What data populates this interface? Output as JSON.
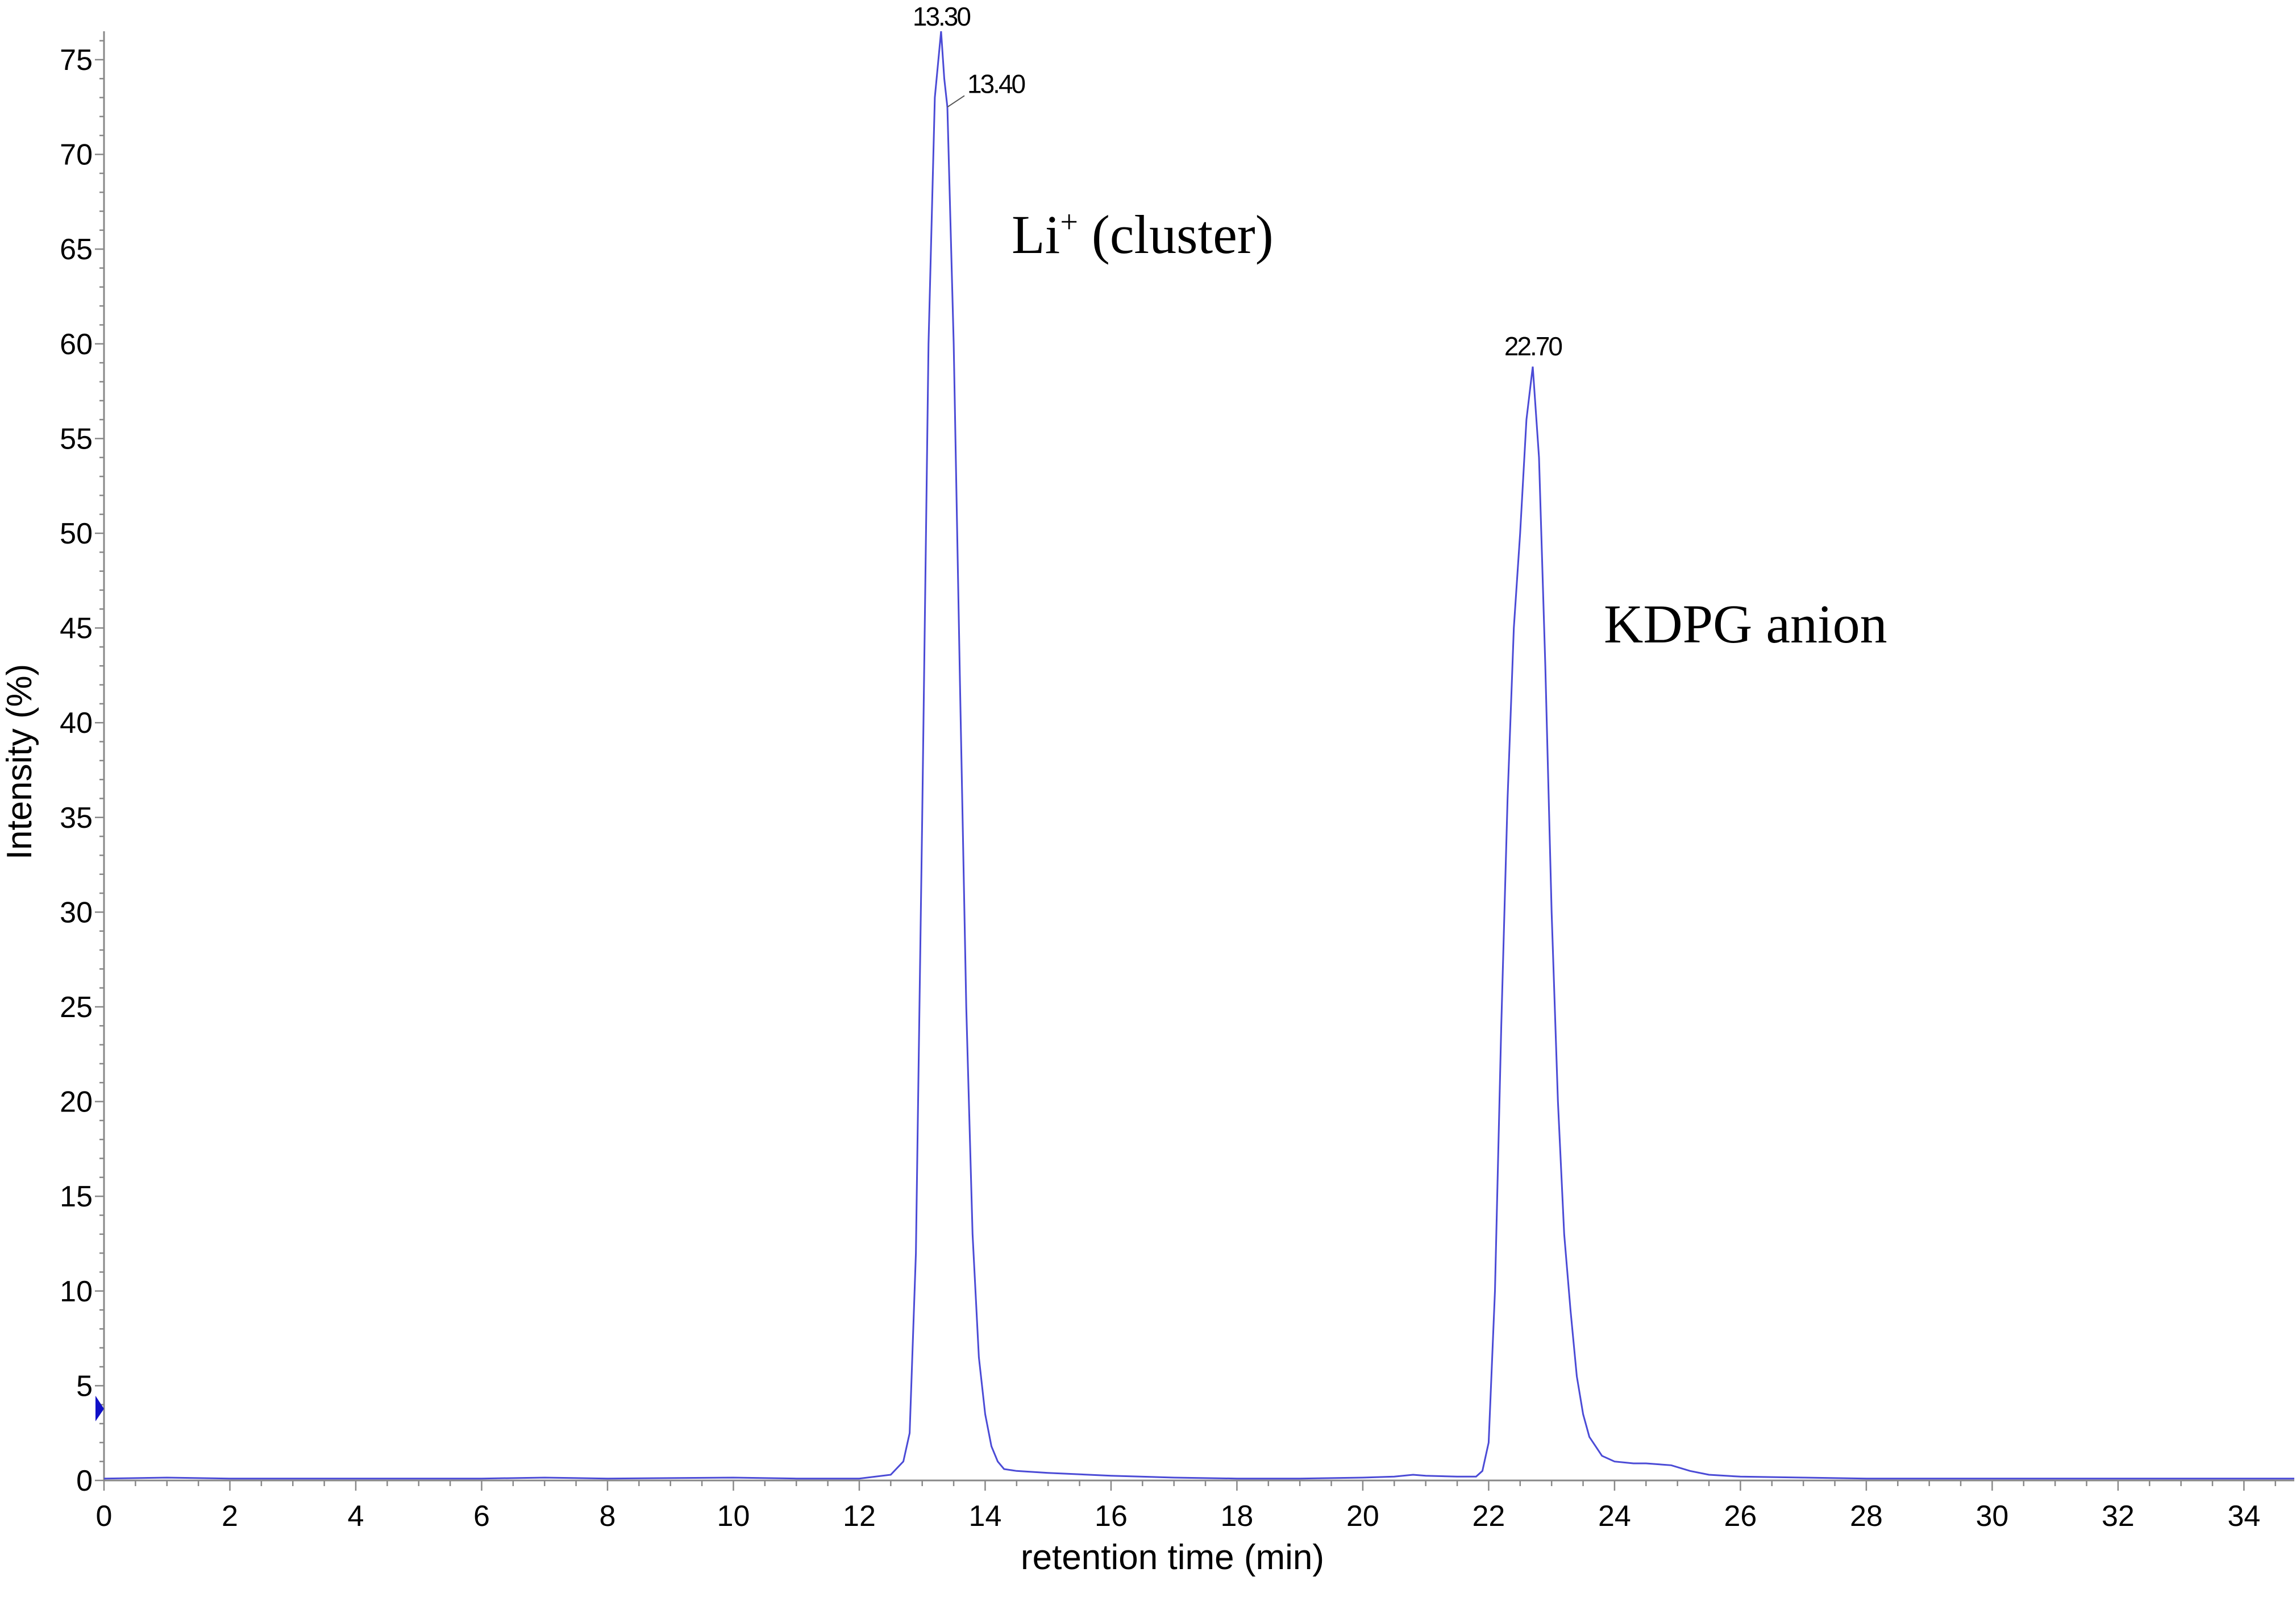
{
  "chart_data": {
    "type": "line",
    "xlabel": "retention time (min)",
    "ylabel": "Intensity (%)",
    "xlim": [
      0,
      34.8
    ],
    "ylim": [
      0,
      76.5
    ],
    "x_ticks": [
      0,
      2,
      4,
      6,
      8,
      10,
      12,
      14,
      16,
      18,
      20,
      22,
      24,
      26,
      28,
      30,
      32,
      34
    ],
    "x_tick_labels": [
      "0",
      "2",
      "4",
      "6",
      "8",
      "10",
      "12",
      "14",
      "16",
      "18",
      "20",
      "22",
      "24",
      "26",
      "28",
      "30",
      "32",
      "34"
    ],
    "y_ticks": [
      0,
      5,
      10,
      15,
      20,
      25,
      30,
      35,
      40,
      45,
      50,
      55,
      60,
      65,
      70,
      75
    ],
    "y_tick_labels": [
      "0",
      "5",
      "10",
      "15",
      "20",
      "25",
      "30",
      "35",
      "40",
      "45",
      "50",
      "55",
      "60",
      "65",
      "70",
      "75"
    ],
    "grid": false,
    "line_color": "#4b4bd6",
    "marker_color": "#1010c8",
    "series": [
      {
        "x": [
          0,
          1,
          2,
          4,
          6,
          7,
          8,
          10,
          11,
          12,
          12.5,
          12.7,
          12.8,
          12.9,
          13.0,
          13.1,
          13.2,
          13.3,
          13.35,
          13.4,
          13.5,
          13.6,
          13.7,
          13.8,
          13.9,
          14.0,
          14.1,
          14.2,
          14.3,
          14.5,
          15,
          16,
          17,
          18,
          19,
          20,
          20.5,
          20.8,
          21,
          21.5,
          21.8,
          21.9,
          22.0,
          22.1,
          22.2,
          22.3,
          22.4,
          22.5,
          22.6,
          22.7,
          22.8,
          22.9,
          23.0,
          23.1,
          23.2,
          23.3,
          23.4,
          23.5,
          23.6,
          23.8,
          24.0,
          24.3,
          24.5,
          24.9,
          25.2,
          25.5,
          26,
          27,
          28,
          30,
          32,
          34,
          34.8
        ],
        "y": [
          0.1,
          0.15,
          0.1,
          0.1,
          0.1,
          0.15,
          0.1,
          0.15,
          0.1,
          0.1,
          0.3,
          1.0,
          2.5,
          12,
          35,
          60,
          73,
          76.5,
          74,
          72.5,
          60,
          42,
          25,
          13,
          6.5,
          3.5,
          1.8,
          1.0,
          0.6,
          0.5,
          0.4,
          0.25,
          0.15,
          0.1,
          0.1,
          0.15,
          0.2,
          0.3,
          0.25,
          0.2,
          0.2,
          0.5,
          2.0,
          10,
          24,
          36,
          45,
          50,
          56,
          58.8,
          54,
          43,
          30,
          20,
          13,
          9,
          5.5,
          3.5,
          2.3,
          1.3,
          1.0,
          0.9,
          0.9,
          0.8,
          0.5,
          0.3,
          0.2,
          0.15,
          0.1,
          0.1,
          0.1,
          0.1,
          0.1
        ]
      }
    ],
    "peak_labels": [
      {
        "text": "13.30",
        "x": 13.3,
        "y": 76.5
      },
      {
        "text": "13.40",
        "x": 13.4,
        "y": 72.5
      },
      {
        "text": "22.70",
        "x": 22.7,
        "y": 58.8
      }
    ],
    "annotations": [
      {
        "text": "Li",
        "superscript": "+",
        "suffix": " (cluster)"
      },
      {
        "text": "KDPG anion"
      }
    ]
  }
}
